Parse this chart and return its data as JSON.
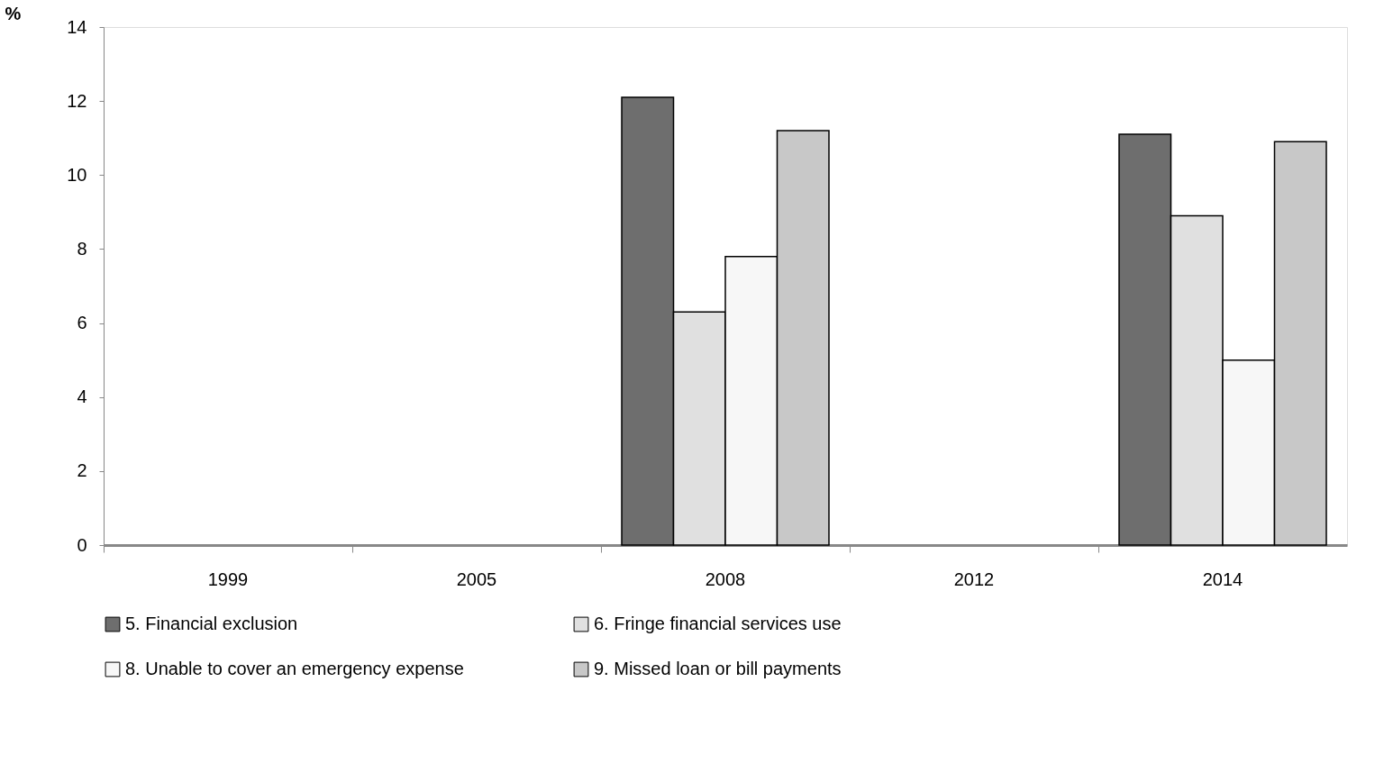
{
  "chart_data": {
    "type": "bar",
    "ylabel": "%",
    "categories": [
      "1999",
      "2005",
      "2008",
      "2012",
      "2014"
    ],
    "series": [
      {
        "name": "5. Financial exclusion",
        "color": "#6e6e6e",
        "values": [
          null,
          null,
          12.1,
          null,
          11.1
        ]
      },
      {
        "name": "6. Fringe financial services use",
        "color": "#e0e0e0",
        "values": [
          null,
          null,
          6.3,
          null,
          8.9
        ]
      },
      {
        "name": "8. Unable to cover an emergency expense",
        "color": "#f7f7f7",
        "values": [
          null,
          null,
          7.8,
          null,
          5.0
        ]
      },
      {
        "name": "9. Missed loan or bill payments",
        "color": "#c8c8c8",
        "values": [
          null,
          null,
          11.2,
          null,
          10.9
        ]
      }
    ],
    "ylim": [
      0,
      14
    ],
    "yticks": [
      0,
      2,
      4,
      6,
      8,
      10,
      12,
      14
    ],
    "grid": false,
    "legend": "bottom"
  }
}
